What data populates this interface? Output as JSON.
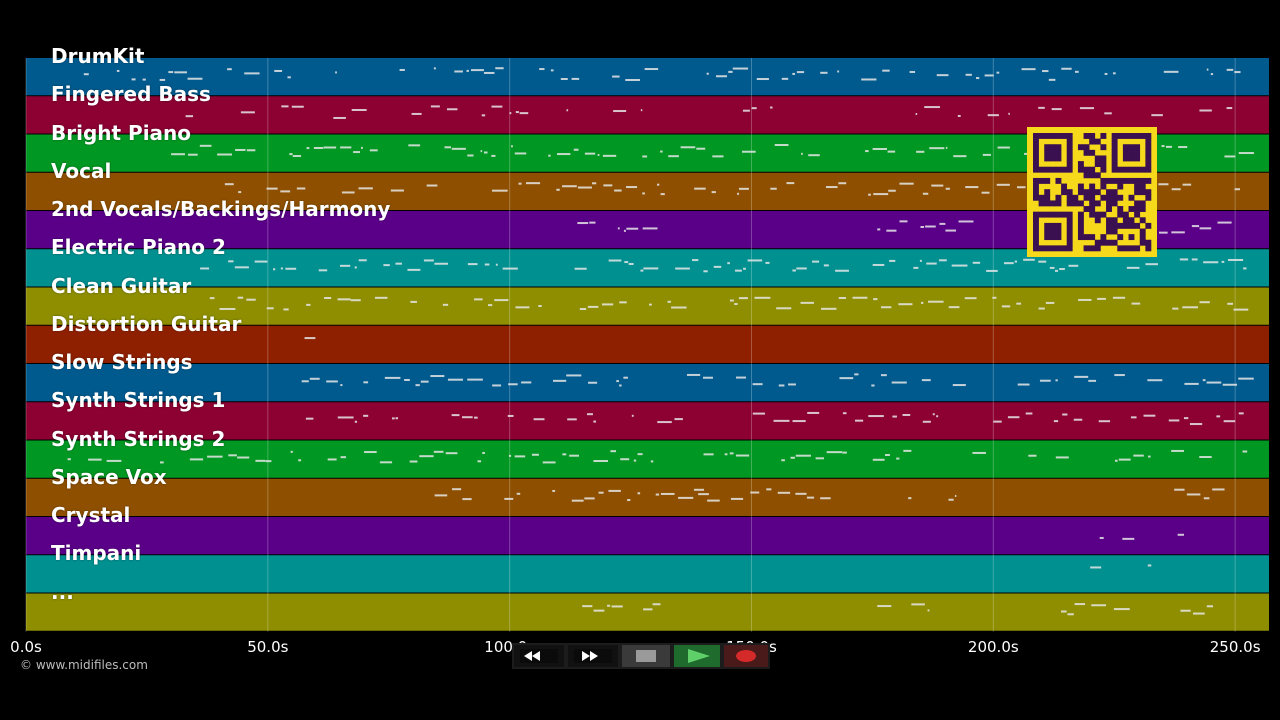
{
  "window": {
    "title": ""
  },
  "tracks": [
    {
      "name": "DrumKit",
      "color": "#005a8e"
    },
    {
      "name": "Fingered Bass",
      "color": "#8c0032"
    },
    {
      "name": "Bright Piano",
      "color": "#009722"
    },
    {
      "name": "Vocal",
      "color": "#8e5000"
    },
    {
      "name": "2nd Vocals/Backings/Harmony",
      "color": "#5a0088"
    },
    {
      "name": "Electric Piano 2",
      "color": "#009090"
    },
    {
      "name": "Clean Guitar",
      "color": "#8e8e00"
    },
    {
      "name": "Distortion Guitar",
      "color": "#8e2000"
    },
    {
      "name": "Slow Strings",
      "color": "#005a8e"
    },
    {
      "name": "Synth Strings 1",
      "color": "#8c0032"
    },
    {
      "name": "Synth Strings 2",
      "color": "#009722"
    },
    {
      "name": "Space Vox",
      "color": "#8e5000"
    },
    {
      "name": "Crystal",
      "color": "#5a0088"
    },
    {
      "name": "Timpani",
      "color": "#009090"
    },
    {
      "name": "...",
      "color": "#8e8e00"
    }
  ],
  "timeline": {
    "min_seconds": 0,
    "max_seconds": 257,
    "ticks": [
      {
        "seconds": 0,
        "label": "0.0s"
      },
      {
        "seconds": 50,
        "label": "50.0s"
      },
      {
        "seconds": 100,
        "label": "100.0s"
      },
      {
        "seconds": 150,
        "label": "150.0s"
      },
      {
        "seconds": 200,
        "label": "200.0s"
      },
      {
        "seconds": 250,
        "label": "250.0s"
      }
    ]
  },
  "footer": {
    "copyright": "© www.midifiles.com"
  },
  "transport": {
    "rewind": "rewind-icon",
    "fast_forward": "fast-forward-icon",
    "stop": "stop-icon",
    "play": "play-icon",
    "record": "record-icon"
  },
  "qr_code": {
    "color": "#f5d91a",
    "dark": "#3a1050"
  }
}
